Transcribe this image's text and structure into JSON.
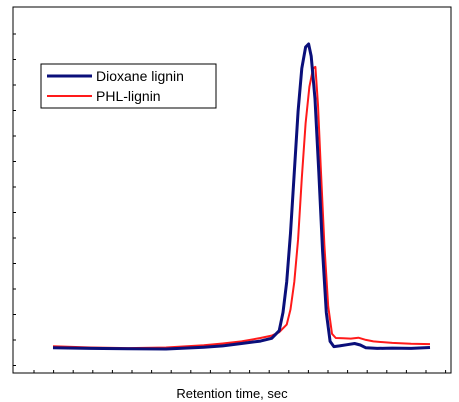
{
  "chart_data": {
    "type": "line",
    "title": "",
    "xlabel": "Retention time, sec",
    "ylabel": "",
    "xlim": [
      0,
      100
    ],
    "ylim": [
      0,
      100
    ],
    "grid": false,
    "legend_position": "top-left",
    "tick_labels": false,
    "series": [
      {
        "name": "Dioxane lignin",
        "color": "#0a0f7a",
        "points": [
          [
            0,
            0.4
          ],
          [
            10,
            0.2
          ],
          [
            20,
            0.1
          ],
          [
            30,
            0.0
          ],
          [
            40,
            0.6
          ],
          [
            45,
            1.0
          ],
          [
            50,
            1.8
          ],
          [
            55,
            2.6
          ],
          [
            58,
            3.5
          ],
          [
            60,
            6.0
          ],
          [
            61,
            12.0
          ],
          [
            62,
            22.0
          ],
          [
            63,
            38.0
          ],
          [
            64,
            58.0
          ],
          [
            65,
            78.0
          ],
          [
            66,
            92.0
          ],
          [
            67,
            99.0
          ],
          [
            67.8,
            100.0
          ],
          [
            68.5,
            96.0
          ],
          [
            69.5,
            82.0
          ],
          [
            70.5,
            58.0
          ],
          [
            71.5,
            32.0
          ],
          [
            72.5,
            12.0
          ],
          [
            73.5,
            2.5
          ],
          [
            74.5,
            0.8
          ],
          [
            76,
            1.0
          ],
          [
            78,
            1.4
          ],
          [
            80,
            1.8
          ],
          [
            81.5,
            1.3
          ],
          [
            83,
            0.4
          ],
          [
            86,
            0.2
          ],
          [
            90,
            0.3
          ],
          [
            95,
            0.2
          ],
          [
            100,
            0.5
          ]
        ]
      },
      {
        "name": "PHL-lignin",
        "color": "#ff1a1a",
        "points": [
          [
            0,
            0.9
          ],
          [
            10,
            0.5
          ],
          [
            20,
            0.3
          ],
          [
            30,
            0.5
          ],
          [
            40,
            1.2
          ],
          [
            45,
            1.8
          ],
          [
            50,
            2.5
          ],
          [
            55,
            3.6
          ],
          [
            58,
            4.4
          ],
          [
            60,
            5.5
          ],
          [
            62,
            8.0
          ],
          [
            63,
            13.0
          ],
          [
            64,
            22.0
          ],
          [
            65,
            36.0
          ],
          [
            66,
            56.0
          ],
          [
            67,
            74.0
          ],
          [
            68,
            86.0
          ],
          [
            69,
            92.0
          ],
          [
            69.6,
            92.5
          ],
          [
            70.3,
            80.0
          ],
          [
            71,
            60.0
          ],
          [
            72,
            34.0
          ],
          [
            73,
            14.0
          ],
          [
            74,
            5.0
          ],
          [
            75,
            3.6
          ],
          [
            77,
            3.5
          ],
          [
            79,
            3.4
          ],
          [
            81,
            3.7
          ],
          [
            83,
            3.0
          ],
          [
            85,
            2.5
          ],
          [
            90,
            2.0
          ],
          [
            95,
            1.7
          ],
          [
            100,
            1.6
          ]
        ]
      }
    ]
  }
}
